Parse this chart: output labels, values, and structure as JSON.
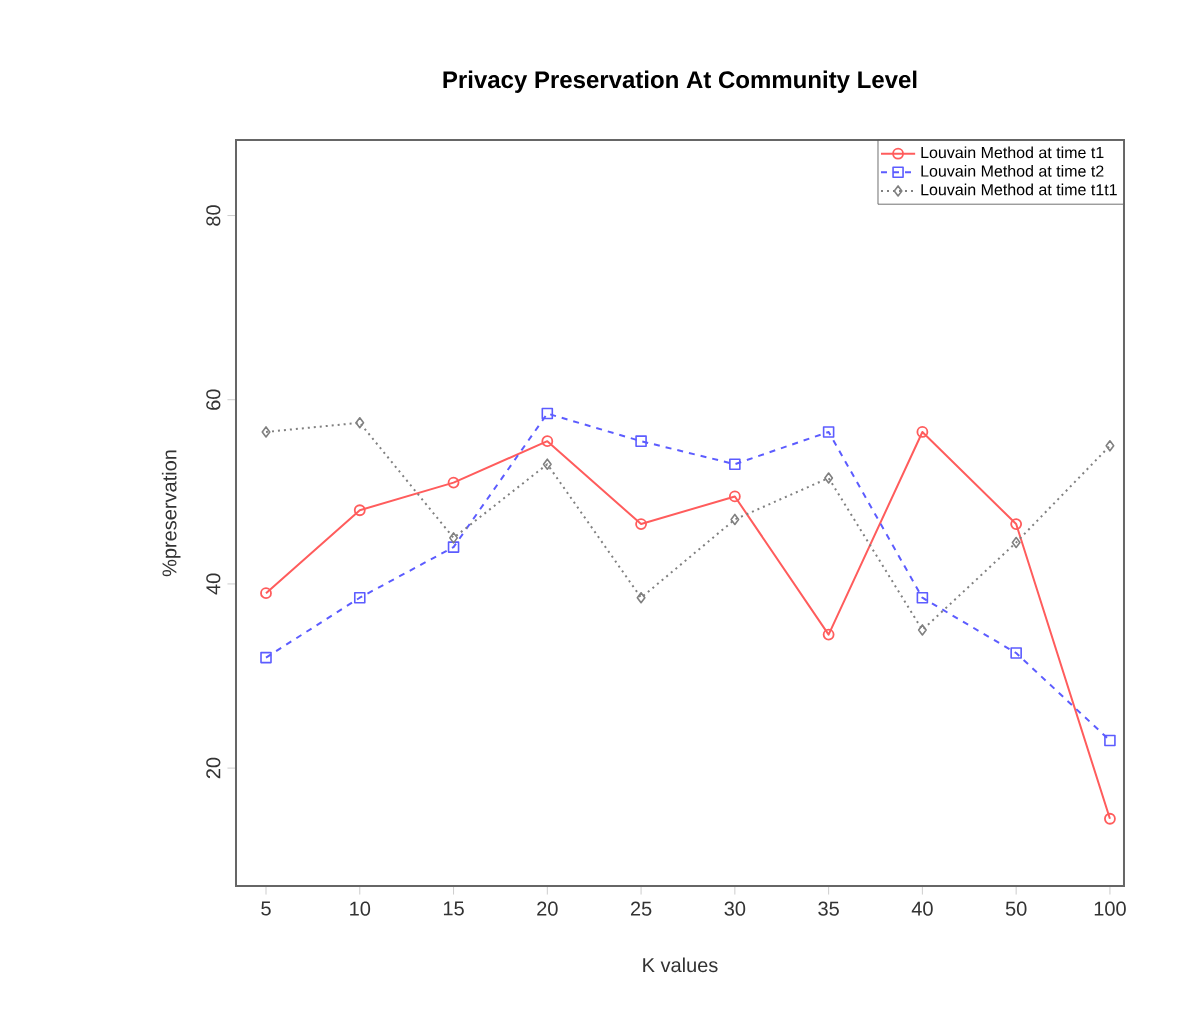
{
  "chart_data": {
    "type": "line",
    "title": "Privacy Preservation At Community Level",
    "xlabel": "K values",
    "ylabel": "%preservation",
    "categories": [
      "5",
      "10",
      "15",
      "20",
      "25",
      "30",
      "35",
      "40",
      "50",
      "100"
    ],
    "series": [
      {
        "name": "Louvain Method at time t1",
        "color": "#ff5c5c",
        "marker": "circle",
        "line_style": "solid",
        "values": [
          39,
          48,
          51,
          55.5,
          46.5,
          49.5,
          34.5,
          56.5,
          46.5,
          14.5
        ]
      },
      {
        "name": "Louvain Method at time t2",
        "color": "#5c5cff",
        "marker": "square",
        "line_style": "dashed",
        "values": [
          32,
          38.5,
          44,
          58.5,
          55.5,
          53,
          56.5,
          38.5,
          32.5,
          23
        ]
      },
      {
        "name": "Louvain Method at time t1t1",
        "color": "#808080",
        "marker": "diamond",
        "line_style": "dotted",
        "values": [
          56.5,
          57.5,
          45,
          53,
          38.5,
          47,
          51.5,
          35,
          44.5,
          55
        ]
      }
    ],
    "ylim": [
      7.2,
      88.2
    ],
    "yticks": [
      20,
      40,
      60,
      80
    ],
    "grid": false,
    "legend": "top right"
  }
}
